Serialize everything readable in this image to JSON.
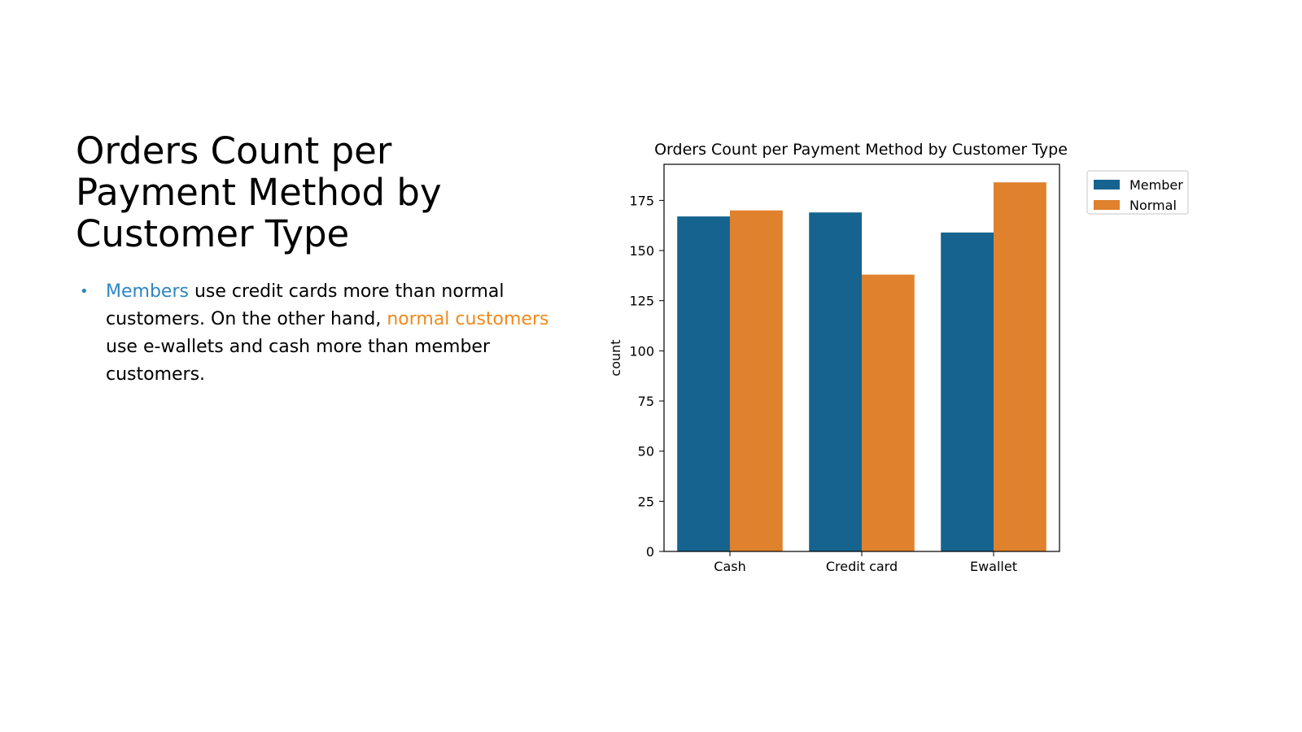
{
  "slide": {
    "title": "Orders Count per Payment Method by Customer Type",
    "bullet": {
      "marker": "•",
      "segments": [
        {
          "text": "Members",
          "style": "member"
        },
        {
          "text": " use ",
          "style": "plain"
        },
        {
          "text": "credit cards",
          "style": "plain"
        },
        {
          "text": " more than normal customers. On the other hand, ",
          "style": "plain"
        },
        {
          "text": "normal customers",
          "style": "normal"
        },
        {
          "text": " use ",
          "style": "plain"
        },
        {
          "text": "e-wallets",
          "style": "plain"
        },
        {
          "text": " and ",
          "style": "plain"
        },
        {
          "text": "cash",
          "style": "plain"
        },
        {
          "text": " more than member customers.",
          "style": "plain"
        }
      ]
    }
  },
  "colors": {
    "member": "#16638f",
    "normal": "#e0812d",
    "member_text": "#2e86c1",
    "normal_text": "#f08a1c",
    "bullet": "#2e86c1"
  },
  "chart_data": {
    "type": "bar",
    "title": "Orders Count per Payment Method by Customer Type",
    "xlabel": "",
    "ylabel": "count",
    "categories": [
      "Cash",
      "Credit card",
      "Ewallet"
    ],
    "series": [
      {
        "name": "Member",
        "values": [
          167,
          169,
          159
        ]
      },
      {
        "name": "Normal",
        "values": [
          170,
          138,
          184
        ]
      }
    ],
    "ylim": [
      0,
      193
    ],
    "yticks": [
      0,
      25,
      50,
      75,
      100,
      125,
      150,
      175
    ],
    "grid": false,
    "legend_position": "outside-top-right"
  }
}
